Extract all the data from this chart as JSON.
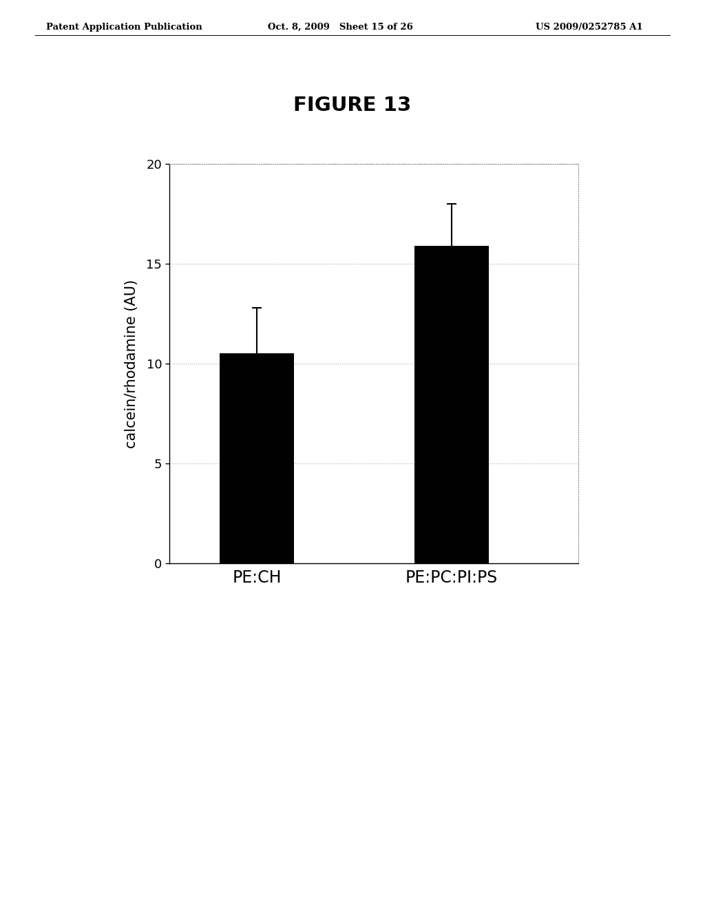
{
  "title": "FIGURE 13",
  "categories": [
    "PE:CH",
    "PE:PC:PI:PS"
  ],
  "values": [
    10.5,
    15.9
  ],
  "errors": [
    2.3,
    2.1
  ],
  "bar_color": "#000000",
  "bar_width": 0.38,
  "ylabel": "calcein/rhodamine (AU)",
  "ylim": [
    0,
    20
  ],
  "yticks": [
    0,
    5,
    10,
    15,
    20
  ],
  "grid_color": "#aaaaaa",
  "background_color": "#ffffff",
  "header_left": "Patent Application Publication",
  "header_mid": "Oct. 8, 2009   Sheet 15 of 26",
  "header_right": "US 2009/0252785 A1",
  "header_fontsize": 9.5,
  "title_fontsize": 21,
  "axis_fontsize": 15,
  "tick_fontsize": 13,
  "xlabel_fontsize": 17,
  "capsize": 5,
  "error_linewidth": 1.5
}
